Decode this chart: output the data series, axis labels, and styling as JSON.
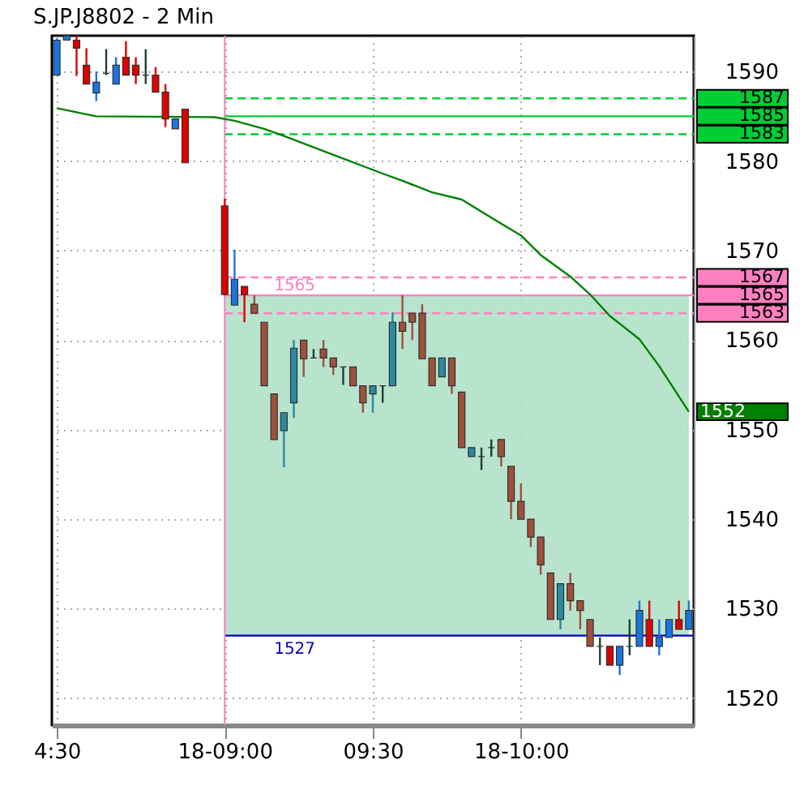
{
  "chart_data": {
    "type": "candlestick",
    "title": "S.JP.J8802 - 2 Min",
    "categories": [
      "4:30",
      null,
      null,
      null,
      null,
      null,
      null,
      null,
      null,
      null,
      null,
      null,
      null,
      null,
      null,
      null,
      null,
      "18-09:00",
      null,
      null,
      null,
      null,
      null,
      null,
      null,
      null,
      null,
      null,
      null,
      null,
      null,
      null,
      "09:30",
      null,
      null,
      null,
      null,
      null,
      null,
      null,
      null,
      null,
      null,
      null,
      null,
      null,
      null,
      "18-10:00",
      null,
      null,
      null,
      null,
      null,
      null,
      null,
      null,
      null,
      null,
      null,
      null,
      null,
      null,
      null,
      null,
      null
    ],
    "ohlc": [
      [
        1589.6,
        1593.7,
        1589.6,
        1593.5
      ],
      [
        1593.5,
        1594,
        1593.5,
        1594
      ],
      [
        1593.5,
        1594,
        1589.5,
        1592.6
      ],
      [
        1590.7,
        1592.6,
        1588.6,
        1588.6
      ],
      [
        1587.6,
        1590,
        1586.7,
        1588.8
      ],
      [
        1589.8,
        1592.5,
        1589.6,
        1589.8
      ],
      [
        1588.6,
        1591.6,
        1588.6,
        1590.7
      ],
      [
        1591.6,
        1593.4,
        1589.6,
        1589.6
      ],
      [
        1590.7,
        1591.6,
        1588.6,
        1589.6
      ],
      [
        1589.6,
        1592.5,
        1588.6,
        1589.6
      ],
      [
        1589.6,
        1590.5,
        1587.7,
        1587.7
      ],
      [
        1587.7,
        1588.6,
        1583.8,
        1584.7
      ],
      [
        1583.6,
        1584.7,
        1583.6,
        1584.7
      ],
      [
        1585.8,
        1585.8,
        1579.8,
        1579.8
      ],
      null,
      null,
      null,
      [
        1575,
        1575.8,
        1565,
        1565.1
      ],
      [
        1563.9,
        1570.1,
        1563.9,
        1566.8
      ],
      [
        1566,
        1566,
        1562,
        1565.1
      ],
      [
        1564,
        1565,
        1563,
        1563
      ],
      [
        1562,
        1562,
        1554.9,
        1554.9
      ],
      [
        1554,
        1554,
        1548.9,
        1548.9
      ],
      [
        1549.9,
        1551.9,
        1545.8,
        1551.9
      ],
      [
        1553,
        1560,
        1551.3,
        1559.1
      ],
      [
        1560,
        1560,
        1555.9,
        1557.9
      ],
      [
        1558,
        1559,
        1558,
        1558
      ],
      [
        1559,
        1560,
        1557,
        1558
      ],
      [
        1558,
        1558,
        1556.1,
        1557
      ],
      [
        1557,
        1557,
        1555,
        1557
      ],
      [
        1557,
        1557,
        1554.9,
        1554.9
      ],
      [
        1554.9,
        1554.9,
        1551.9,
        1553
      ],
      [
        1554,
        1554.9,
        1551.9,
        1554.9
      ],
      [
        1554.9,
        1554.9,
        1553,
        1554.9
      ],
      [
        1554.9,
        1563.1,
        1554.9,
        1562
      ],
      [
        1562,
        1565,
        1559,
        1561
      ],
      [
        1563,
        1563,
        1560,
        1562
      ],
      [
        1563,
        1564,
        1557.9,
        1557.9
      ],
      [
        1558,
        1558,
        1554.9,
        1554.9
      ],
      [
        1555.9,
        1558,
        1555.9,
        1558
      ],
      [
        1558,
        1558,
        1554,
        1554.9
      ],
      [
        1554.2,
        1554.2,
        1548,
        1548
      ],
      [
        1547,
        1548,
        1547,
        1548
      ],
      [
        1547,
        1548,
        1545.5,
        1547
      ],
      [
        1548,
        1548.9,
        1547,
        1548
      ],
      [
        1548.9,
        1548.9,
        1545.9,
        1547
      ],
      [
        1545.9,
        1545.9,
        1540,
        1542
      ],
      [
        1542,
        1544,
        1540,
        1540
      ],
      [
        1540,
        1540,
        1536.9,
        1538
      ],
      [
        1538,
        1538,
        1533.8,
        1534.9
      ],
      [
        1534,
        1534,
        1528.8,
        1528.8
      ],
      [
        1528.8,
        1532.8,
        1527.7,
        1532.8
      ],
      [
        1532.8,
        1534,
        1529.8,
        1530.9
      ],
      [
        1530.9,
        1530.9,
        1527.7,
        1529.8
      ],
      [
        1528.8,
        1528.8,
        1525.8,
        1525.8
      ],
      [
        1525.8,
        1526.8,
        1523.7,
        1525.8
      ],
      [
        1525.8,
        1525.8,
        1523.7,
        1523.7
      ],
      [
        1523.7,
        1525.8,
        1522.6,
        1525.8
      ],
      [
        1525.8,
        1528.8,
        1524.8,
        1525.8
      ],
      [
        1525.8,
        1530.9,
        1525.8,
        1529.8
      ],
      [
        1528.8,
        1530.9,
        1525.8,
        1525.8
      ],
      [
        1525.8,
        1528.8,
        1524.8,
        1526.8
      ],
      [
        1526.8,
        1528.8,
        1526.8,
        1528.8
      ],
      [
        1528.8,
        1530.9,
        1527.7,
        1527.7
      ],
      [
        1527.7,
        1530.9,
        1527.7,
        1529.8
      ]
    ],
    "colors": [
      "#1a75e0",
      "#1a75e0",
      "#e00000",
      "#e00000",
      "#1a75e0",
      "#204030",
      "#1a75e0",
      "#e00000",
      "#e00000",
      "#204030",
      "#e00000",
      "#e00000",
      "#1a75e0",
      "#e00000",
      null,
      null,
      null,
      "#e00000",
      "#1a75e0",
      "#e00000",
      "#a0503a",
      "#a0503a",
      "#a0503a",
      "#2a8aa0",
      "#2a8aa0",
      "#a0503a",
      "#204030",
      "#a0503a",
      "#a0503a",
      "#204030",
      "#a0503a",
      "#a0503a",
      "#2a8aa0",
      "#204030",
      "#2a8aa0",
      "#a0503a",
      "#a0503a",
      "#a0503a",
      "#a0503a",
      "#2a8aa0",
      "#a0503a",
      "#a0503a",
      "#2a8aa0",
      "#204030",
      "#204030",
      "#a0503a",
      "#a0503a",
      "#a0503a",
      "#a0503a",
      "#a0503a",
      "#a0503a",
      "#2a8aa0",
      "#a0503a",
      "#a0503a",
      "#a0503a",
      "#204030",
      "#e00000",
      "#1a75e0",
      "#204030",
      "#1a75e0",
      "#e00000",
      "#1a75e0",
      "#1a75e0",
      "#e00000",
      "#1a75e0"
    ],
    "series": [
      {
        "type": "line",
        "color": "#008000",
        "values": [
          1585.9,
          null,
          null,
          null,
          1585.0,
          null,
          null,
          null,
          null,
          null,
          null,
          null,
          null,
          null,
          null,
          null,
          1584.9,
          null,
          1584.5,
          null,
          null,
          1583.6,
          null,
          1582.8,
          null,
          null,
          null,
          null,
          1580.7,
          null,
          null,
          null,
          null,
          1578.6,
          null,
          1577.8,
          null,
          null,
          1576.5,
          null,
          null,
          1575.7,
          null,
          null,
          null,
          1573,
          null,
          1571.7,
          null,
          1569.5,
          null,
          null,
          1567.1,
          null,
          1565.1,
          null,
          1562.7,
          null,
          null,
          1560.1,
          null,
          1557.1,
          null,
          null,
          1552
        ],
        "value_labels": [
          null,
          null,
          null,
          null,
          null,
          null,
          null,
          null,
          null,
          null,
          null,
          null,
          null,
          null,
          null,
          null,
          null,
          null,
          null,
          null,
          null,
          null,
          null,
          null,
          null,
          null,
          null,
          null,
          null,
          null,
          null,
          null,
          null,
          null,
          null,
          null,
          null,
          null,
          null,
          null,
          null,
          null,
          null,
          null,
          null,
          null,
          null,
          null,
          null,
          null,
          null,
          null,
          null,
          null,
          null,
          null,
          null,
          null,
          null,
          null,
          null,
          null,
          null,
          null,
          "1552"
        ]
      }
    ],
    "ylim": [
      1517,
      1594
    ],
    "yticks": [
      1520,
      1530,
      1540,
      1550,
      1560,
      1570,
      1580,
      1590
    ],
    "grid": true,
    "bands": [
      {
        "axis": "y",
        "from": 1527,
        "to": 1565,
        "color": "#b0e0c8"
      }
    ],
    "ref_lines": [
      {
        "axis": "y",
        "value": 1587,
        "label": "1587",
        "color": "#00cc33",
        "line_style": "dashed"
      },
      {
        "axis": "y",
        "value": 1585,
        "label": "1585",
        "color": "#00cc33",
        "line_style": "solid"
      },
      {
        "axis": "y",
        "value": 1583,
        "label": "1583",
        "color": "#00cc33",
        "line_style": "dashed"
      },
      {
        "axis": "y",
        "value": 1567,
        "label": "1567",
        "color": "#ff80c0",
        "line_style": "dashed"
      },
      {
        "axis": "y",
        "value": 1565,
        "label": "1565",
        "color": "#ff80c0",
        "line_style": "solid"
      },
      {
        "axis": "y",
        "value": 1563,
        "label": "1563",
        "color": "#ff80c0",
        "line_style": "dashed"
      },
      {
        "axis": "y",
        "value": 1527,
        "label": null,
        "color": "#0000c0",
        "line_style": "solid"
      },
      {
        "axis": "x",
        "value": "18-09:00",
        "color": "#ff80c0"
      }
    ],
    "annotations": [
      {
        "text": "1565",
        "y": 1565
      },
      {
        "text": "1527",
        "y": 1527
      }
    ]
  }
}
